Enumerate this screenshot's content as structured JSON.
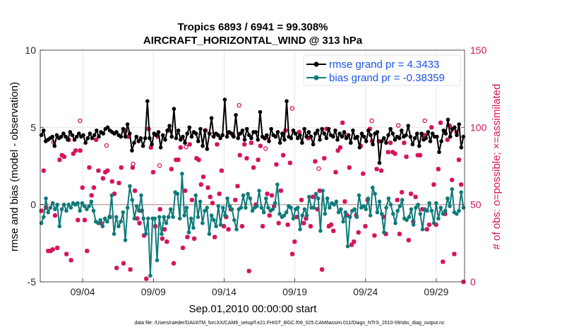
{
  "chart_data": {
    "type": "line",
    "title": "Tropics 6893 / 6941 = 99.308%",
    "subtitle": "AIRCRAFT_HORIZONTAL_WIND @ 313 hPa",
    "xlabel": "Sep.01,2010 00:00:00 start",
    "ylabel_left": "rmse and bias (model - observation)",
    "ylabel_right": "# of obs: o=possible; ×=assimilated",
    "ylim_left": [
      -5,
      10
    ],
    "ylim_right": [
      0,
      150
    ],
    "yticks_left": [
      "-5",
      "0",
      "5",
      "10"
    ],
    "yticks_right": [
      "0",
      "50",
      "100",
      "150"
    ],
    "xlim": [
      0,
      30
    ],
    "xticks": [
      {
        "x": 3,
        "label": "09/04"
      },
      {
        "x": 8,
        "label": "09/09"
      },
      {
        "x": 13,
        "label": "09/14"
      },
      {
        "x": 18,
        "label": "09/19"
      },
      {
        "x": 23,
        "label": "09/24"
      },
      {
        "x": 28,
        "label": "09/29"
      }
    ],
    "footnote": "data file: /Users/raeder/DAI/ATM_forcXX/CAM6_setup/f.e21.FHIST_BGC.f09_025.CAM6assim.011/Diags_NTrS_2010-09/obs_diag_output.nc",
    "series": [
      {
        "name": "rmse grand pr = 4.3433",
        "color": "#000000",
        "values": [
          4.5,
          4.8,
          4.1,
          4.2,
          4.3,
          4.4,
          3.8,
          4.5,
          4.3,
          4.4,
          4.6,
          4.4,
          4.2,
          4.7,
          4.5,
          4.2,
          4.4,
          4.6,
          4.4,
          4.5,
          4.0,
          4.3,
          4.6,
          4.3,
          4.5,
          4.8,
          4.4,
          4.7,
          4.6,
          4.9,
          5.0,
          4.8,
          4.7,
          4.6,
          4.7,
          4.5,
          4.4,
          4.9,
          4.4,
          5.2,
          4.6,
          3.5,
          4.0,
          4.4,
          4.1,
          4.3,
          3.8,
          4.3,
          6.7,
          4.3,
          3.9,
          4.6,
          4.5,
          4.7,
          3.7,
          4.5,
          4.2,
          4.8,
          5.1,
          4.4,
          6.2,
          4.3,
          4.8,
          4.2,
          4.4,
          4.0,
          4.6,
          5.0,
          4.4,
          4.7,
          4.6,
          4.1,
          4.9,
          3.8,
          4.8,
          3.6,
          4.6,
          5.6,
          4.4,
          4.6,
          4.5,
          4.3,
          4.5,
          6.8,
          4.4,
          4.7,
          4.6,
          4.4,
          5.8,
          4.3,
          4.6,
          4.8,
          4.2,
          4.9,
          4.5,
          4.3,
          4.7,
          4.7,
          4.2,
          6.0,
          4.4,
          4.3,
          4.5,
          4.1,
          4.9,
          4.5,
          4.4,
          4.7,
          4.0,
          4.6,
          4.2,
          6.7,
          4.4,
          4.3,
          4.8,
          4.6,
          4.3,
          4.5,
          4.0,
          4.9,
          4.4,
          4.7,
          4.4,
          3.9,
          4.6,
          4.8,
          4.2,
          4.9,
          4.6,
          4.3,
          4.9,
          4.5,
          4.4,
          4.8,
          4.2,
          4.6,
          4.4,
          4.7,
          4.3,
          4.5,
          4.0,
          4.8,
          4.3,
          4.4,
          3.7,
          4.6,
          4.4,
          4.1,
          4.8,
          4.5,
          3.9,
          4.6,
          4.7,
          2.7,
          4.1,
          4.3,
          4.0,
          4.5,
          4.9,
          4.6,
          4.2,
          4.4,
          4.3,
          4.8,
          4.4,
          4.5,
          5.1,
          4.4,
          3.9,
          4.3,
          4.6,
          3.8,
          4.6,
          4.2,
          4.3,
          4.7,
          4.1,
          4.6,
          4.4,
          4.4,
          3.4,
          4.1,
          4.8,
          4.6,
          5.5,
          4.4,
          4.9,
          5.0,
          4.5,
          5.2,
          3.7,
          4.4
        ],
        "marker": "filled-circle"
      },
      {
        "name": "bias grand pr = -0.38359",
        "color": "#0f7a7a",
        "values": [
          -1.2,
          -0.8,
          0.4,
          -0.5,
          -0.2,
          0.1,
          -0.3,
          0.0,
          -1.4,
          -0.3,
          0.0,
          -0.4,
          0.0,
          -0.2,
          0.1,
          0.0,
          0.1,
          -0.4,
          0.1,
          -0.1,
          -0.3,
          -0.1,
          0.2,
          -0.4,
          -1.1,
          -1.2,
          -1.0,
          -1.4,
          -0.9,
          -1.1,
          -0.8,
          0.6,
          -1.9,
          -0.8,
          -1.4,
          -1.1,
          -0.5,
          -2.3,
          -0.2,
          1.2,
          0.3,
          -0.9,
          -0.1,
          -0.4,
          0.6,
          -0.9,
          -1.9,
          -0.9,
          -4.6,
          -0.9,
          -0.9,
          -3.6,
          -0.8,
          -1.9,
          -0.8,
          -1.2,
          -0.8,
          -0.3,
          -0.8,
          0.8,
          0.7,
          -0.9,
          2.0,
          -0.7,
          -0.2,
          -1.8,
          -0.9,
          -1.5,
          0.6,
          -0.8,
          0.2,
          -1.2,
          -0.4,
          -0.2,
          -1.9,
          -0.7,
          -1.0,
          -1.4,
          -0.1,
          -1.3,
          -0.2,
          -0.7,
          0.4,
          -0.1,
          -0.3,
          -1.0,
          -1.6,
          -0.3,
          -0.2,
          0.6,
          -0.2,
          0.7,
          0.4,
          -0.4,
          -0.2,
          -0.1,
          0.9,
          -0.2,
          -0.5,
          0.4,
          -0.2,
          -0.4,
          -0.3,
          0.1,
          1.3,
          -0.6,
          -0.8,
          -0.7,
          -0.5,
          -0.1,
          -0.2,
          -0.9,
          -0.3,
          -0.2,
          -1.6,
          -0.7,
          -0.3,
          -0.7,
          0.5,
          -0.2,
          -0.2,
          0.7,
          0.4,
          -1.7,
          0.9,
          -0.6,
          0.4,
          -0.2,
          0.1,
          0.0,
          0.2,
          -0.5,
          -0.3,
          -1.1,
          -0.5,
          -2.7,
          -0.8,
          -0.4,
          -0.3,
          -0.8,
          0.6,
          -0.2,
          -0.1,
          -0.3,
          0.4,
          -0.7,
          1.1,
          0.7,
          -0.5,
          0.2,
          -0.6,
          -1.8,
          -0.2,
          0.4,
          0.0,
          -0.6,
          -1.2,
          -0.4,
          -0.1,
          0.3,
          -0.9,
          -1.0,
          -0.8,
          -0.3,
          -1.3,
          -0.2,
          0.0,
          -0.6,
          -1.6,
          -0.3,
          -0.4,
          0.1,
          -0.4,
          -1.2,
          0.1,
          -0.9,
          -0.2,
          -0.6,
          -0.4,
          0.4,
          -0.1,
          1.0,
          -0.5,
          -0.6,
          -0.4,
          0.8,
          -0.2
        ],
        "marker": "filled-circle"
      }
    ],
    "obs_counts": {
      "color": "#d4145a",
      "assimilated": [
        46,
        72,
        48,
        20,
        20,
        21,
        43,
        22,
        79,
        82,
        81,
        18,
        92,
        14,
        83,
        85,
        40,
        85,
        61,
        40,
        20,
        74,
        56,
        61,
        92,
        72,
        38,
        67,
        71,
        72,
        42,
        65,
        57,
        9,
        64,
        74,
        12,
        98,
        94,
        8,
        74,
        59,
        41,
        38,
        46,
        30,
        2,
        99,
        87,
        71,
        36,
        94,
        47,
        28,
        34,
        26,
        98,
        73,
        12,
        79,
        79,
        87,
        22,
        59,
        29,
        89,
        53,
        28,
        80,
        79,
        63,
        68,
        98,
        61,
        55,
        51,
        29,
        89,
        57,
        72,
        36,
        42,
        34,
        47,
        95,
        53,
        62,
        82,
        36,
        89,
        80,
        7,
        90,
        74,
        50,
        79,
        88,
        36,
        93,
        57,
        43,
        56,
        49,
        76,
        38,
        59,
        82,
        98,
        37,
        77,
        18,
        26,
        42,
        97,
        53,
        38,
        41,
        93,
        36,
        55,
        78,
        47,
        59,
        8,
        80,
        99,
        36,
        37,
        33,
        71,
        85,
        87,
        103,
        52,
        43,
        74,
        24,
        26,
        43,
        32,
        88,
        70,
        36,
        53,
        99,
        91,
        30,
        73,
        91,
        72,
        42,
        31,
        84,
        90,
        84,
        83,
        53,
        31,
        58,
        90,
        81,
        27,
        57,
        39,
        55,
        82,
        82,
        47,
        95,
        34,
        37,
        100,
        63,
        37,
        73,
        103,
        13,
        44,
        92,
        101,
        66,
        18,
        97,
        79,
        63,
        0
      ],
      "possible_only": [
        88,
        102,
        86,
        74,
        73,
        85,
        93,
        112,
        84,
        110,
        71,
        93,
        102,
        99,
        102,
        96
      ]
    }
  },
  "legend": {
    "rmse_label": "rmse grand pr = 4.3433",
    "bias_label": "bias grand pr = -0.38359"
  }
}
